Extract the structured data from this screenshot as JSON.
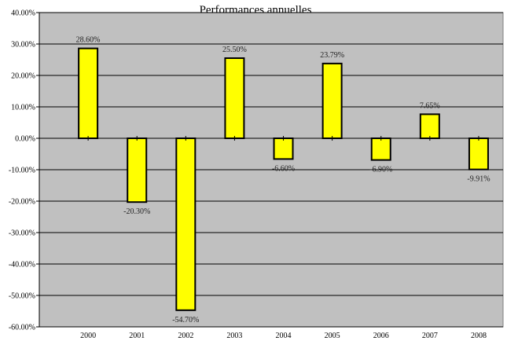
{
  "chart_data": {
    "type": "bar",
    "title": "Performances annuelles",
    "xlabel": "",
    "ylabel": "",
    "categories": [
      "2000",
      "2001",
      "2002",
      "2003",
      "2004",
      "2005",
      "2006",
      "2007",
      "2008"
    ],
    "values": [
      28.6,
      -20.3,
      -54.7,
      25.5,
      -6.6,
      23.79,
      -6.9,
      7.65,
      -9.91
    ],
    "value_labels": [
      "28.60%",
      "-20.30%",
      "-54.70%",
      "25.50%",
      "-6.60%",
      "23.79%",
      "-6.90%",
      "7.65%",
      "-9.91%"
    ],
    "ylim": [
      -60,
      40
    ],
    "yticks": [
      40,
      30,
      20,
      10,
      0,
      -10,
      -20,
      -30,
      -40,
      -50,
      -60
    ],
    "ytick_labels": [
      "40.00%",
      "30.00%",
      "20.00%",
      "10.00%",
      "0.00%",
      "-10.00%",
      "-20.00%",
      "-30.00%",
      "-40.00%",
      "-50.00%",
      "-60.00%"
    ],
    "grid": true,
    "legend": "none",
    "colors": {
      "bar_fill": "#ffff00",
      "bar_stroke": "#000000",
      "plot_background": "#c0c0c0",
      "gridline": "#000000"
    }
  }
}
